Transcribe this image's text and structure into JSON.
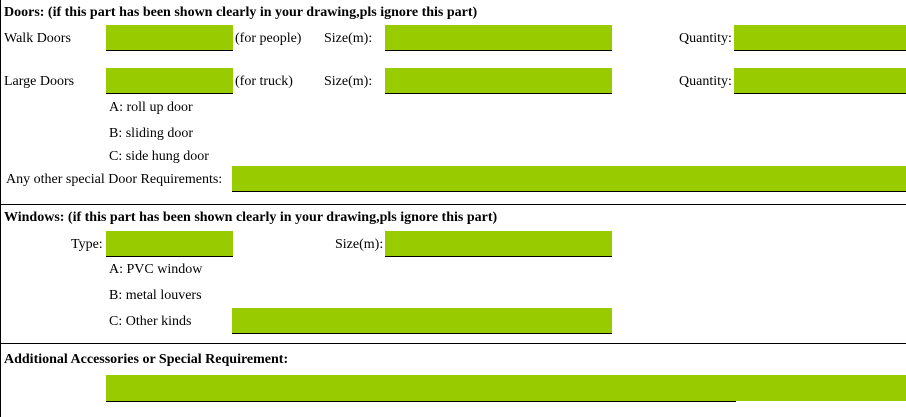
{
  "doors": {
    "header": "Doors: (if this part has been shown clearly in your drawing,pls ignore this part)",
    "walk_label": "Walk Doors",
    "walk_note": "(for people)",
    "large_label": "Large Doors",
    "large_note": "(for truck)",
    "size_label": "Size(m):",
    "quantity_label": "Quantity:",
    "options": [
      "A: roll up door",
      "B: sliding door",
      "C: side hung door"
    ],
    "special_label": "Any other special Door Requirements:"
  },
  "windows": {
    "header": "Windows: (if this part has been shown clearly in your drawing,pls ignore this part)",
    "type_label": "Type:",
    "size_label": "Size(m):",
    "options": [
      "A: PVC window",
      "B: metal louvers",
      "C: Other kinds"
    ]
  },
  "additional": {
    "header": "Additional Accessories or Special Requirement:"
  },
  "colors": {
    "field_fill": "#99cc00"
  }
}
